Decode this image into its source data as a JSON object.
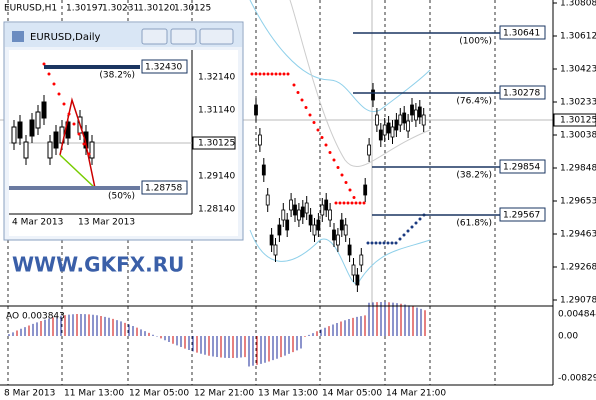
{
  "main": {
    "symbol": "EURUSD,H1",
    "ohlc": [
      "1.30197",
      "1.30231",
      "1.30120",
      "1.30125"
    ],
    "price_axis": [
      "1.30808",
      "1.30612",
      "1.30423",
      "1.30233",
      "1.30038",
      "1.29848",
      "1.29653",
      "1.29463",
      "1.29268",
      "1.29078"
    ],
    "current_price": "1.30125",
    "time_axis": [
      "8 Mar 2013",
      "11 Mar 13:00",
      "12 Mar 05:00",
      "12 Mar 21:00",
      "13 Mar 13:00",
      "14 Mar 05:00",
      "14 Mar 21:00"
    ],
    "fib_levels": [
      {
        "percent": "(100%)",
        "price": "1.30641"
      },
      {
        "percent": "(76.4%)",
        "price": "1.30278"
      },
      {
        "percent": "(38.2%)",
        "price": "1.29854"
      },
      {
        "percent": "(61.8%)",
        "price": "1.29567"
      }
    ],
    "watermark": "WWW.GKFX.RU"
  },
  "indicator": {
    "label": "AO 0.003843",
    "axis": [
      "0.004844",
      "0.00",
      "-0.00829"
    ]
  },
  "inset": {
    "title": "EURUSD,Daily",
    "price_axis": [
      "1.32140",
      "1.31140",
      "1.30125",
      "1.29140",
      "1.28140"
    ],
    "fib": [
      {
        "percent": "(38.2%)",
        "price": "1.32430"
      },
      {
        "percent": "(50%)",
        "price": "1.28758"
      }
    ],
    "dates": [
      "4 Mar 2013",
      "13 Mar 2013"
    ]
  }
}
